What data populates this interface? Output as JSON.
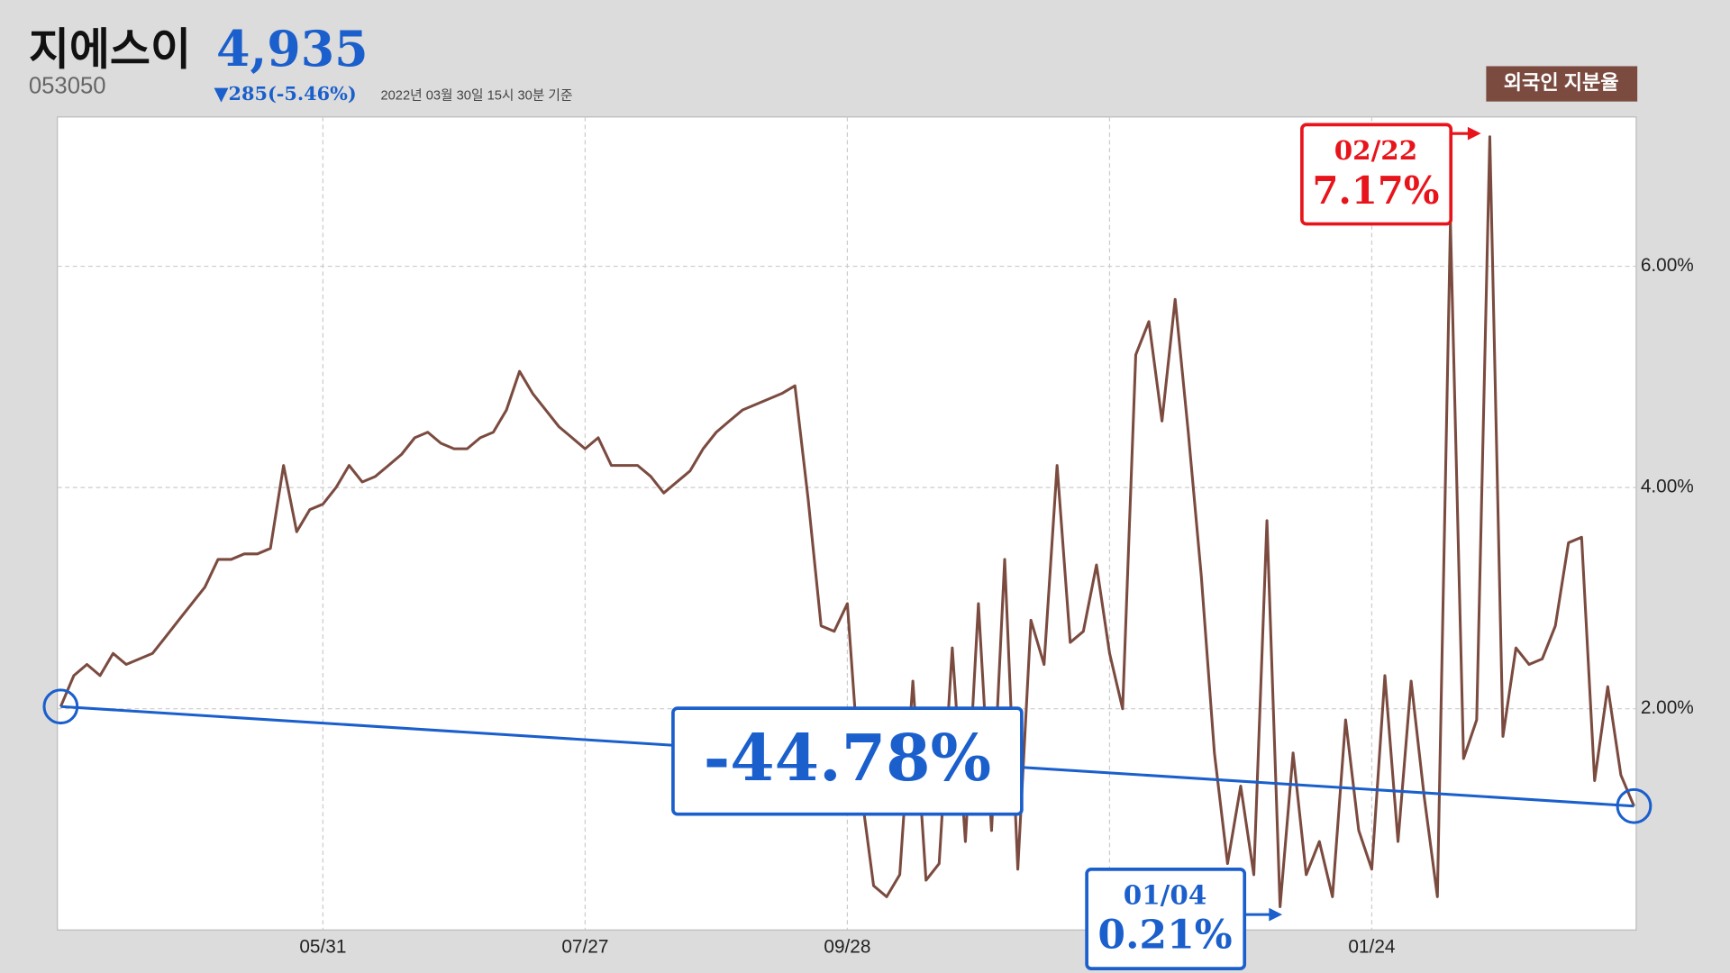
{
  "header": {
    "name": "지에스이",
    "price": "4,935",
    "code": "053050",
    "change": "▼285(-5.46%)",
    "timestamp": "2022년 03월 30일 15시 30분 기준"
  },
  "chart_data": {
    "type": "line",
    "series": [
      {
        "name": "외국인 지분율",
        "color": "#7b4b40",
        "values": [
          2.02,
          2.3,
          2.4,
          2.3,
          2.5,
          2.4,
          2.45,
          2.5,
          2.65,
          2.8,
          2.95,
          3.1,
          3.35,
          3.35,
          3.4,
          3.4,
          3.45,
          4.2,
          3.6,
          3.8,
          3.85,
          4.0,
          4.2,
          4.05,
          4.1,
          4.2,
          4.3,
          4.45,
          4.5,
          4.4,
          4.35,
          4.35,
          4.45,
          4.5,
          4.7,
          5.05,
          4.85,
          4.7,
          4.55,
          4.45,
          4.35,
          4.45,
          4.2,
          4.2,
          4.2,
          4.1,
          3.95,
          4.05,
          4.15,
          4.35,
          4.5,
          4.6,
          4.7,
          4.75,
          4.8,
          4.85,
          4.92,
          3.9,
          2.75,
          2.7,
          2.95,
          1.3,
          0.4,
          0.3,
          0.5,
          2.25,
          0.45,
          0.6,
          2.55,
          0.8,
          2.95,
          0.9,
          3.35,
          0.55,
          2.8,
          2.4,
          4.2,
          2.6,
          2.7,
          3.3,
          2.5,
          2.0,
          5.2,
          5.5,
          4.6,
          5.7,
          4.5,
          3.2,
          1.6,
          0.6,
          1.3,
          0.5,
          3.7,
          0.21,
          1.6,
          0.5,
          0.8,
          0.3,
          1.9,
          0.9,
          0.55,
          2.3,
          0.8,
          2.25,
          1.2,
          0.3,
          6.4,
          1.55,
          1.9,
          7.17,
          1.75,
          2.55,
          2.4,
          2.45,
          2.75,
          3.5,
          3.55,
          1.35,
          2.2,
          1.4,
          1.12
        ]
      }
    ],
    "categories": [
      null,
      null,
      null,
      null,
      null,
      null,
      null,
      null,
      null,
      null,
      null,
      null,
      null,
      null,
      null,
      null,
      null,
      null,
      null,
      null,
      "05/31",
      null,
      null,
      null,
      null,
      null,
      null,
      null,
      null,
      null,
      null,
      null,
      null,
      null,
      null,
      null,
      null,
      null,
      null,
      null,
      "07/27",
      null,
      null,
      null,
      null,
      null,
      null,
      null,
      null,
      null,
      null,
      null,
      null,
      null,
      null,
      null,
      null,
      null,
      null,
      null,
      "09/28",
      null,
      null,
      null,
      null,
      null,
      null,
      null,
      null,
      null,
      null,
      null,
      null,
      null,
      null,
      null,
      null,
      null,
      null,
      null,
      null,
      null,
      null,
      null,
      null,
      null,
      null,
      null,
      null,
      null,
      null,
      null,
      null,
      null,
      null,
      null,
      null,
      null,
      null,
      null,
      "01/24",
      null,
      null,
      null,
      null,
      null,
      null,
      null,
      null,
      null,
      null,
      null,
      null,
      null,
      null,
      null,
      null,
      null,
      null,
      null,
      null
    ],
    "ylim": [
      0,
      7.35
    ],
    "yticks": [
      {
        "value": 2,
        "label": "2.00%"
      },
      {
        "value": 4,
        "label": "4.00%"
      },
      {
        "value": 6,
        "label": "6.00%"
      }
    ],
    "grid": true,
    "annotations": {
      "change": "-44.78%",
      "max": {
        "date": "02/22",
        "label": "7.17%"
      },
      "min": {
        "date": "01/04",
        "label": "0.21%"
      }
    }
  }
}
